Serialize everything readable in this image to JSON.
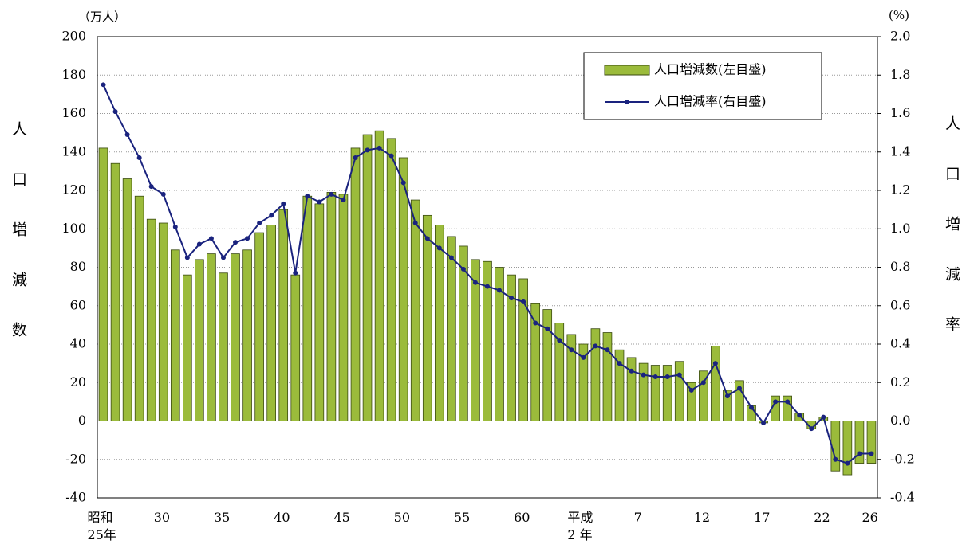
{
  "chart_data": {
    "type": "bar-line",
    "y_label": "人口増減数",
    "y_unit": "（万人）",
    "y2_label": "人口増減率",
    "y2_unit": "(%)",
    "categories": [
      "昭和\n25年",
      null,
      null,
      null,
      null,
      "30",
      null,
      null,
      null,
      null,
      "35",
      null,
      null,
      null,
      null,
      "40",
      null,
      null,
      null,
      null,
      "45",
      null,
      null,
      null,
      null,
      "50",
      null,
      null,
      null,
      null,
      "55",
      null,
      null,
      null,
      null,
      "60",
      null,
      null,
      null,
      null,
      "平成\n2 年",
      null,
      null,
      null,
      null,
      "7",
      null,
      null,
      null,
      null,
      "12",
      null,
      null,
      null,
      null,
      "17",
      null,
      null,
      null,
      null,
      "22",
      null,
      null,
      null,
      "26"
    ],
    "series": [
      {
        "name": "人口増減数(左目盛)",
        "type": "bar",
        "color": "#9bbb3b",
        "values": [
          142,
          134,
          126,
          117,
          105,
          103,
          89,
          76,
          84,
          87,
          77,
          87,
          89,
          98,
          102,
          110,
          76,
          117,
          113,
          119,
          118,
          142,
          149,
          151,
          147,
          137,
          115,
          107,
          102,
          96,
          91,
          84,
          83,
          80,
          76,
          74,
          61,
          58,
          51,
          45,
          40,
          48,
          46,
          37,
          33,
          30,
          29,
          29,
          31,
          20,
          26,
          39,
          16,
          21,
          8,
          -1,
          13,
          13,
          4,
          -4,
          2,
          -26,
          -28,
          -22,
          -22
        ]
      },
      {
        "name": "人口増減率(右目盛)",
        "type": "line",
        "axis": "y2",
        "color": "#1a237e",
        "values": [
          1.75,
          1.61,
          1.49,
          1.37,
          1.22,
          1.18,
          1.01,
          0.85,
          0.92,
          0.95,
          0.85,
          0.93,
          0.95,
          1.03,
          1.07,
          1.13,
          0.77,
          1.17,
          1.14,
          1.18,
          1.15,
          1.37,
          1.41,
          1.42,
          1.38,
          1.24,
          1.03,
          0.95,
          0.9,
          0.85,
          0.79,
          0.72,
          0.7,
          0.68,
          0.64,
          0.62,
          0.51,
          0.48,
          0.42,
          0.37,
          0.33,
          0.39,
          0.37,
          0.3,
          0.26,
          0.24,
          0.23,
          0.23,
          0.24,
          0.16,
          0.2,
          0.3,
          0.13,
          0.17,
          0.07,
          -0.01,
          0.1,
          0.1,
          0.03,
          -0.04,
          0.02,
          -0.2,
          -0.22,
          -0.17,
          -0.17
        ]
      }
    ],
    "ylim": [
      -40,
      200
    ],
    "yticks": [
      -40,
      -20,
      0,
      20,
      40,
      60,
      80,
      100,
      120,
      140,
      160,
      180,
      200
    ],
    "y2lim": [
      -0.4,
      2.0
    ],
    "y2ticks": [
      -0.4,
      -0.2,
      {
        "value": 0,
        "label": "0.0"
      },
      0.2,
      0.4,
      0.6,
      0.8,
      {
        "value": 1,
        "label": "1.0"
      },
      1.2,
      1.4,
      1.6,
      1.8,
      {
        "value": 2,
        "label": "2.0"
      }
    ],
    "grid": true,
    "legend": "top-right"
  }
}
